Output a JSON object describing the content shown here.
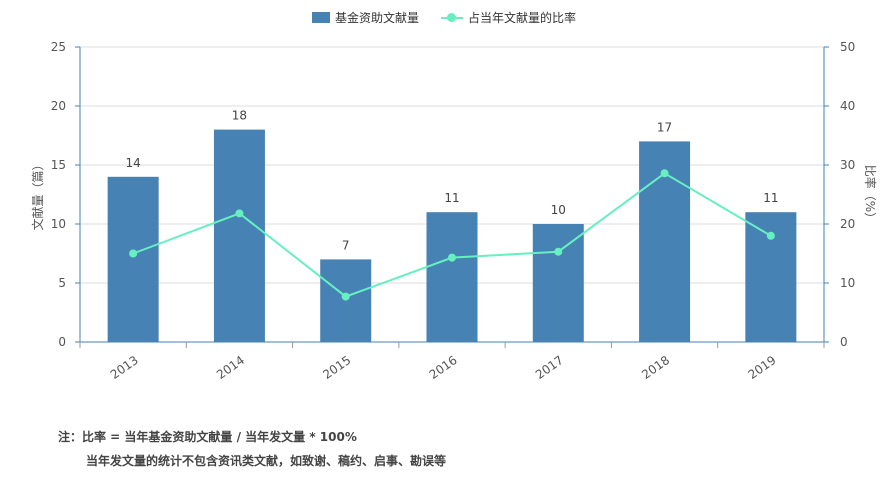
{
  "legend": {
    "bar_label": "基金资助文献量",
    "line_label": "占当年文献量的比率"
  },
  "colors": {
    "bar": "#4682b4",
    "line": "#66f0c0",
    "grid": "#dddddd",
    "axis": "#4682b4"
  },
  "notes": {
    "line1": "注：比率 = 当年基金资助文献量 / 当年发文量 * 100%",
    "line2": "当年发文量的统计不包含资讯类文献，如致谢、稿约、启事、勘误等"
  },
  "chart_data": {
    "type": "bar",
    "categories": [
      "2013",
      "2014",
      "2015",
      "2016",
      "2017",
      "2018",
      "2019"
    ],
    "series": [
      {
        "name": "基金资助文献量",
        "type": "bar",
        "axis": "left",
        "values": [
          14,
          18,
          7,
          11,
          10,
          17,
          11
        ]
      },
      {
        "name": "占当年文献量的比率",
        "type": "line",
        "axis": "right",
        "values": [
          15.0,
          21.8,
          7.7,
          14.3,
          15.3,
          28.6,
          18.0
        ]
      }
    ],
    "ylabel": "文献量（篇）",
    "ylabel_right": "比率（%）",
    "ylim": [
      0,
      25
    ],
    "ylim_right": [
      0,
      50
    ],
    "yticks": [
      0,
      5,
      10,
      15,
      20,
      25
    ],
    "yticks_right": [
      0,
      10,
      20,
      30,
      40,
      50
    ],
    "data_labels": [
      "14",
      "18",
      "7",
      "11",
      "10",
      "17",
      "11"
    ],
    "grid": true,
    "legend_position": "top"
  }
}
